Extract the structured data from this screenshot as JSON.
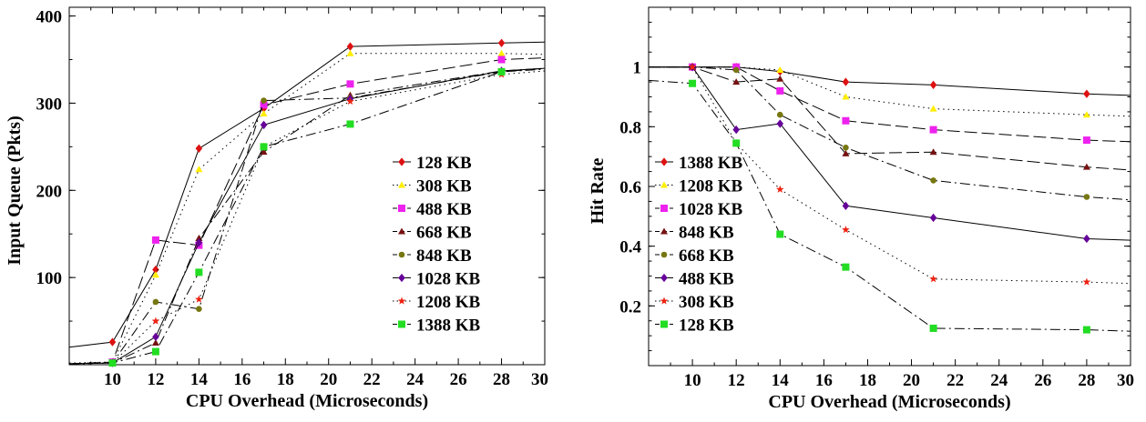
{
  "chart_data": [
    {
      "type": "line",
      "xlabel": "CPU Overhead (Microseconds)",
      "ylabel": "Input Queue (Pkts)",
      "xlim": [
        8,
        30
      ],
      "ylim": [
        0,
        410
      ],
      "xticks": [
        "10",
        "12",
        "14",
        "16",
        "18",
        "20",
        "22",
        "24",
        "26",
        "28",
        "30"
      ],
      "yticks": [
        "100",
        "200",
        "300",
        "400"
      ],
      "legend_position": "bottom-right",
      "series": [
        {
          "name": "128 KB",
          "color": "#dd1111",
          "marker": "diamond",
          "dash": "solid",
          "x": [
            8,
            10,
            12,
            14,
            17,
            21,
            28,
            30
          ],
          "y": [
            20,
            26,
            109,
            248,
            294,
            365,
            369,
            370
          ]
        },
        {
          "name": "308 KB",
          "color": "#ffee00",
          "marker": "tri",
          "dash": "dot",
          "x": [
            8,
            10,
            12,
            14,
            17,
            21,
            28,
            30
          ],
          "y": [
            2,
            3,
            103,
            224,
            288,
            357,
            357,
            356
          ]
        },
        {
          "name": "488 KB",
          "color": "#ee22ee",
          "marker": "square",
          "dash": "longdash",
          "x": [
            8,
            10,
            12,
            14,
            17,
            21,
            28,
            30
          ],
          "y": [
            1,
            3,
            143,
            137,
            298,
            322,
            350,
            352
          ]
        },
        {
          "name": "668 KB",
          "color": "#771111",
          "marker": "tri",
          "dash": "dashdot",
          "x": [
            8,
            10,
            12,
            14,
            17,
            21,
            28,
            30
          ],
          "y": [
            1,
            2,
            25,
            145,
            244,
            309,
            337,
            340
          ]
        },
        {
          "name": "848 KB",
          "color": "#777711",
          "marker": "circle",
          "dash": "dashdot",
          "x": [
            8,
            10,
            12,
            14,
            17,
            21,
            28,
            30
          ],
          "y": [
            1,
            2,
            72,
            64,
            303,
            306,
            336,
            340
          ]
        },
        {
          "name": "1028 KB",
          "color": "#660099",
          "marker": "diamond",
          "dash": "solid",
          "x": [
            8,
            10,
            12,
            14,
            17,
            21,
            28,
            30
          ],
          "y": [
            1,
            2,
            32,
            140,
            275,
            305,
            337,
            340
          ]
        },
        {
          "name": "1208 KB",
          "color": "#ee2211",
          "marker": "star",
          "dash": "dot",
          "x": [
            8,
            10,
            12,
            14,
            17,
            21,
            28,
            30
          ],
          "y": [
            2,
            2,
            50,
            75,
            250,
            302,
            333,
            337
          ]
        },
        {
          "name": "1388 KB",
          "color": "#22dd22",
          "marker": "square",
          "dash": "dashdot",
          "x": [
            8,
            10,
            12,
            14,
            17,
            21,
            28,
            30
          ],
          "y": [
            1,
            2,
            15,
            106,
            250,
            276,
            336,
            339
          ]
        }
      ]
    },
    {
      "type": "line",
      "xlabel": "CPU Overhead (Microseconds)",
      "ylabel": "Hit Rate",
      "xlim": [
        8,
        30
      ],
      "ylim": [
        0,
        1.2
      ],
      "xticks": [
        "10",
        "12",
        "14",
        "16",
        "18",
        "20",
        "22",
        "24",
        "26",
        "28",
        "30"
      ],
      "yticks": [
        "0.2",
        "0.4",
        "0.6",
        "0.8",
        "1"
      ],
      "legend_position": "left",
      "series": [
        {
          "name": "1388 KB",
          "color": "#dd1111",
          "marker": "diamond",
          "dash": "solid",
          "x": [
            8,
            10,
            12,
            14,
            17,
            21,
            28,
            30
          ],
          "y": [
            1.0,
            1.0,
            1.0,
            0.985,
            0.95,
            0.94,
            0.91,
            0.905
          ]
        },
        {
          "name": "1208 KB",
          "color": "#ffee00",
          "marker": "tri",
          "dash": "dot",
          "x": [
            8,
            10,
            12,
            14,
            17,
            21,
            28,
            30
          ],
          "y": [
            1.0,
            1.0,
            1.0,
            0.99,
            0.9,
            0.86,
            0.84,
            0.835
          ]
        },
        {
          "name": "1028 KB",
          "color": "#ee22ee",
          "marker": "square",
          "dash": "longdash",
          "x": [
            8,
            10,
            12,
            14,
            17,
            21,
            28,
            30
          ],
          "y": [
            1.0,
            1.0,
            1.0,
            0.92,
            0.82,
            0.79,
            0.755,
            0.75
          ]
        },
        {
          "name": "848 KB",
          "color": "#771111",
          "marker": "tri",
          "dash": "longdash",
          "x": [
            8,
            10,
            12,
            14,
            17,
            21,
            28,
            30
          ],
          "y": [
            1.0,
            1.0,
            0.95,
            0.96,
            0.71,
            0.715,
            0.665,
            0.655
          ]
        },
        {
          "name": "668 KB",
          "color": "#777711",
          "marker": "circle",
          "dash": "dashdot",
          "x": [
            8,
            10,
            12,
            14,
            17,
            21,
            28,
            30
          ],
          "y": [
            1.0,
            1.0,
            0.99,
            0.84,
            0.73,
            0.62,
            0.565,
            0.555
          ]
        },
        {
          "name": "488 KB",
          "color": "#660099",
          "marker": "diamond",
          "dash": "solid",
          "x": [
            8,
            10,
            12,
            14,
            17,
            21,
            28,
            30
          ],
          "y": [
            1.0,
            1.0,
            0.79,
            0.81,
            0.535,
            0.495,
            0.425,
            0.42
          ]
        },
        {
          "name": "308 KB",
          "color": "#ee2211",
          "marker": "star",
          "dash": "dot",
          "x": [
            8,
            10,
            12,
            14,
            17,
            21,
            28,
            30
          ],
          "y": [
            1.0,
            1.0,
            0.745,
            0.59,
            0.455,
            0.29,
            0.28,
            0.275
          ]
        },
        {
          "name": "128 KB",
          "color": "#22dd22",
          "marker": "square",
          "dash": "dashdot",
          "x": [
            8,
            10,
            12,
            14,
            17,
            21,
            28,
            30
          ],
          "y": [
            0.955,
            0.945,
            0.745,
            0.44,
            0.33,
            0.125,
            0.12,
            0.115
          ]
        }
      ]
    }
  ]
}
